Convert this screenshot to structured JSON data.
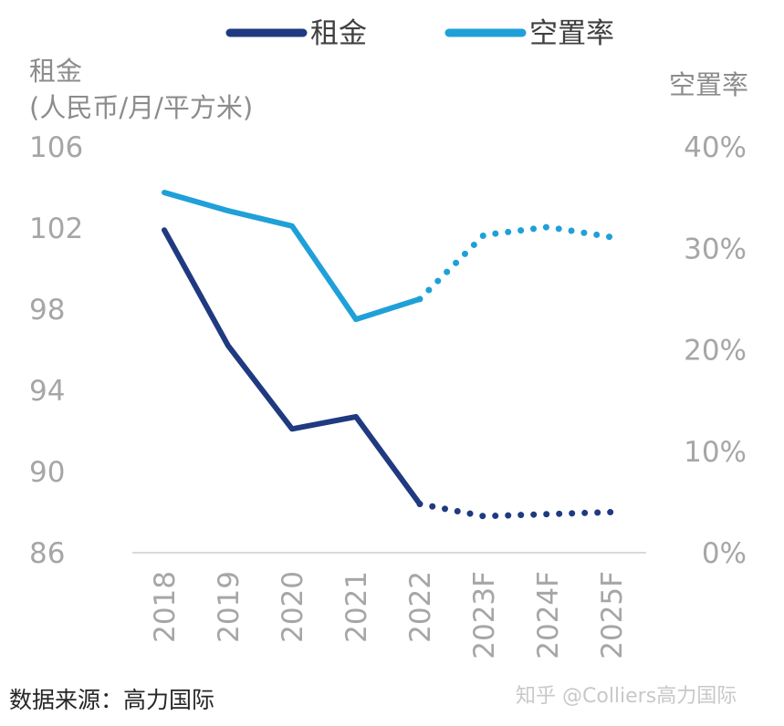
{
  "chart_data": {
    "type": "line",
    "categories": [
      "2018",
      "2019",
      "2020",
      "2021",
      "2022",
      "2023F",
      "2024F",
      "2025F"
    ],
    "forecast_start_index": 4,
    "series": [
      {
        "name": "租金",
        "axis": "left",
        "color": "#1f3a80",
        "values": [
          101.9,
          96.2,
          92.1,
          92.7,
          88.4,
          87.8,
          87.9,
          88.0
        ]
      },
      {
        "name": "空置率",
        "axis": "right",
        "color": "#1fa0d8",
        "values": [
          0.355,
          0.337,
          0.322,
          0.23,
          0.25,
          0.313,
          0.321,
          0.311
        ]
      }
    ],
    "left_axis": {
      "label_line1": "租金",
      "label_line2": "(人民币/月/平方米)",
      "ylim": [
        86,
        106
      ],
      "ticks": [
        106,
        102,
        98,
        94,
        90,
        86
      ]
    },
    "right_axis": {
      "label": "空置率",
      "ylim": [
        0,
        0.4
      ],
      "ticks": [
        "40%",
        "30%",
        "20%",
        "10%",
        "0%"
      ]
    },
    "legend_position": "top",
    "grid": false
  },
  "source": "数据来源：高力国际",
  "watermark": "知乎 @Colliers高力国际"
}
